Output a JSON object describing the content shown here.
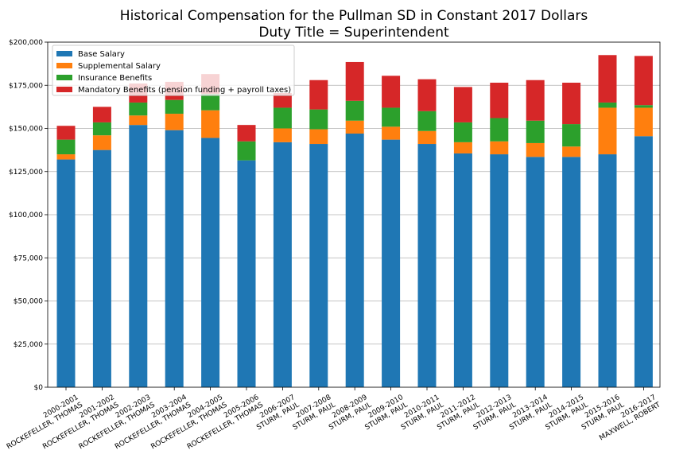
{
  "chart_data": {
    "type": "bar",
    "stacked": true,
    "title": "Historical Compensation for the Pullman SD in Constant 2017 Dollars",
    "subtitle": "Duty Title = Superintendent",
    "xlabel": "",
    "ylabel": "",
    "ylim": [
      0,
      200000
    ],
    "yticks": [
      0,
      25000,
      50000,
      75000,
      100000,
      125000,
      150000,
      175000,
      200000
    ],
    "ytick_labels": [
      "$0",
      "$25,000",
      "$50,000",
      "$75,000",
      "$100,000",
      "$125,000",
      "$150,000",
      "$175,000",
      "$200,000"
    ],
    "grid": "horizontal",
    "legend_position": "top-left",
    "categories": [
      "2000-2001\nROCKEFELLER, THOMAS",
      "2001-2002\nROCKEFELLER, THOMAS",
      "2002-2003\nROCKEFELLER, THOMAS",
      "2003-2004\nROCKEFELLER, THOMAS",
      "2004-2005\nROCKEFELLER, THOMAS",
      "2005-2006\nROCKEFELLER, THOMAS",
      "2006-2007\nSTURM, PAUL",
      "2007-2008\nSTURM, PAUL",
      "2008-2009\nSTURM, PAUL",
      "2009-2010\nSTURM, PAUL",
      "2010-2011\nSTURM, PAUL",
      "2011-2012\nSTURM, PAUL",
      "2012-2013\nSTURM, PAUL",
      "2013-2014\nSTURM, PAUL",
      "2014-2015\nSTURM, PAUL",
      "2015-2016\nSTURM, PAUL",
      "2016-2017\nMAXWELL, ROBERT"
    ],
    "series": [
      {
        "name": "Base Salary",
        "color": "#1f77b4",
        "values": [
          132000,
          137500,
          152000,
          149000,
          144500,
          131500,
          142000,
          141000,
          147000,
          143500,
          141000,
          135500,
          135000,
          133500,
          133500,
          135000,
          145500
        ]
      },
      {
        "name": "Supplemental Salary",
        "color": "#ff7f0e",
        "values": [
          3000,
          8500,
          5500,
          9500,
          16000,
          0,
          8000,
          8500,
          7500,
          7500,
          7500,
          6500,
          7500,
          8000,
          6000,
          27000,
          16500
        ]
      },
      {
        "name": "Insurance Benefits",
        "color": "#2ca02c",
        "values": [
          8500,
          7500,
          7500,
          8000,
          9500,
          11000,
          12000,
          11500,
          11500,
          11000,
          11500,
          11500,
          13500,
          13000,
          13000,
          3000,
          1500
        ]
      },
      {
        "name": "Mandatory Benefits (pension funding + payroll taxes)",
        "color": "#d62728",
        "values": [
          8000,
          9000,
          11000,
          10500,
          11500,
          9500,
          8500,
          17000,
          22500,
          18500,
          18500,
          20500,
          20500,
          23500,
          24000,
          27500,
          28500
        ]
      }
    ]
  }
}
